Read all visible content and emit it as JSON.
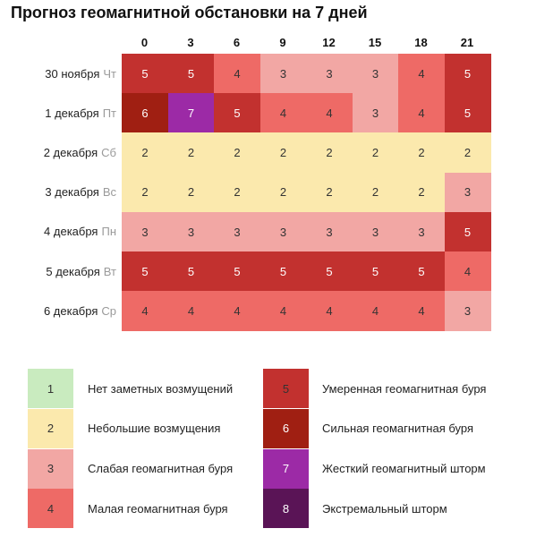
{
  "title": "Прогноз геомагнитной обстановки на 7 дней",
  "chart_data": {
    "type": "heatmap",
    "title": "Прогноз геомагнитной обстановки на 7 дней",
    "x": [
      "0",
      "3",
      "6",
      "9",
      "12",
      "15",
      "18",
      "21"
    ],
    "rows": [
      {
        "date": "30 ноября",
        "day": "Чт",
        "values": [
          5,
          5,
          4,
          3,
          3,
          3,
          4,
          5
        ]
      },
      {
        "date": "1 декабря",
        "day": "Пт",
        "values": [
          6,
          7,
          5,
          4,
          4,
          3,
          4,
          5
        ]
      },
      {
        "date": "2 декабря",
        "day": "Сб",
        "values": [
          2,
          2,
          2,
          2,
          2,
          2,
          2,
          2
        ]
      },
      {
        "date": "3 декабря",
        "day": "Вс",
        "values": [
          2,
          2,
          2,
          2,
          2,
          2,
          2,
          3
        ]
      },
      {
        "date": "4 декабря",
        "day": "Пн",
        "values": [
          3,
          3,
          3,
          3,
          3,
          3,
          3,
          5
        ]
      },
      {
        "date": "5 декабря",
        "day": "Вт",
        "values": [
          5,
          5,
          5,
          5,
          5,
          5,
          5,
          4
        ]
      },
      {
        "date": "6 декабря",
        "day": "Ср",
        "values": [
          4,
          4,
          4,
          4,
          4,
          4,
          4,
          3
        ]
      }
    ],
    "legend": [
      {
        "value": "1",
        "label": "Нет заметных возмущений",
        "color": "#c9ebbf"
      },
      {
        "value": "2",
        "label": "Небольшие возмущения",
        "color": "#fbe9ad"
      },
      {
        "value": "3",
        "label": "Слабая геомагнитная буря",
        "color": "#f2a7a4"
      },
      {
        "value": "4",
        "label": "Малая геомагнитная буря",
        "color": "#ee6a66"
      },
      {
        "value": "5",
        "label": "Умеренная геомагнитная буря",
        "color": "#c2312f"
      },
      {
        "value": "6",
        "label": "Сильная геомагнитная буря",
        "color": "#a01f12"
      },
      {
        "value": "7",
        "label": "Жесткий геомагнитный шторм",
        "color": "#9c2aa6"
      },
      {
        "value": "8",
        "label": "Экстремальный шторм",
        "color": "#5a1456"
      }
    ]
  }
}
